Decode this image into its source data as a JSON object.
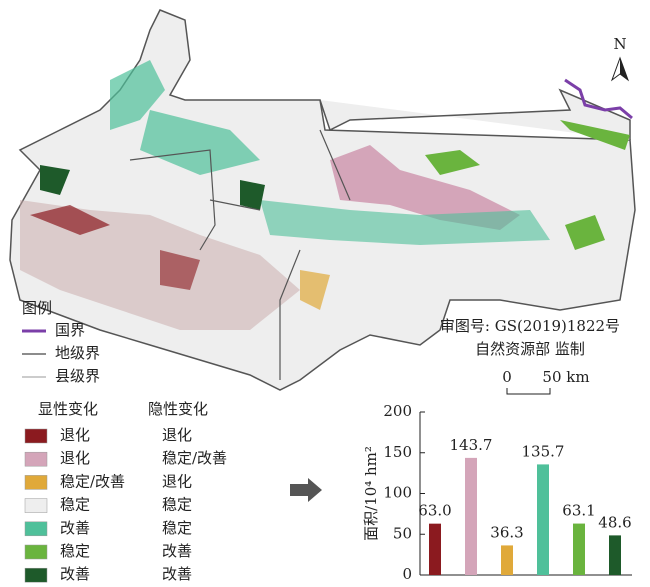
{
  "map": {
    "north": "N",
    "review_number": "审图号: GS(2019)1822号",
    "supervisor": "自然资源部 监制",
    "scale": {
      "start": "0",
      "end": "50 km"
    }
  },
  "legend": {
    "title": "图例",
    "boundaries": [
      {
        "label": "国界",
        "color": "#7b3fa8"
      },
      {
        "label": "地级界",
        "color": "#666666"
      },
      {
        "label": "县级界",
        "color": "#bbbbbb"
      }
    ],
    "headers": [
      "显性变化",
      "隐性变化"
    ],
    "items": [
      {
        "color": "#8b1a1f",
        "explicit": "退化",
        "implicit": "退化"
      },
      {
        "color": "#d4a5b9",
        "explicit": "退化",
        "implicit": "稳定/改善"
      },
      {
        "color": "#e0a93a",
        "explicit": "稳定/改善",
        "implicit": "退化"
      },
      {
        "color": "#eeeeee",
        "explicit": "稳定",
        "implicit": "稳定"
      },
      {
        "color": "#4fc09a",
        "explicit": "改善",
        "implicit": "稳定"
      },
      {
        "color": "#6ab43e",
        "explicit": "稳定",
        "implicit": "改善"
      },
      {
        "color": "#1e5a2a",
        "explicit": "改善",
        "implicit": "改善"
      }
    ]
  },
  "chart_data": {
    "type": "bar",
    "ylabel": "面积/10⁴ hm²",
    "values": [
      63,
      143.7,
      36.3,
      135.7,
      63.1,
      48.6
    ],
    "value_labels": [
      "63.0",
      "143.7",
      "36.3",
      "135.7",
      "63.1",
      "48.6"
    ],
    "colors": [
      "#8b1a1f",
      "#d4a5b9",
      "#e0a93a",
      "#4fc09a",
      "#6ab43e",
      "#1e5a2a"
    ],
    "ylim": [
      0,
      200
    ],
    "yticks": [
      0,
      50,
      100,
      150,
      200
    ]
  }
}
